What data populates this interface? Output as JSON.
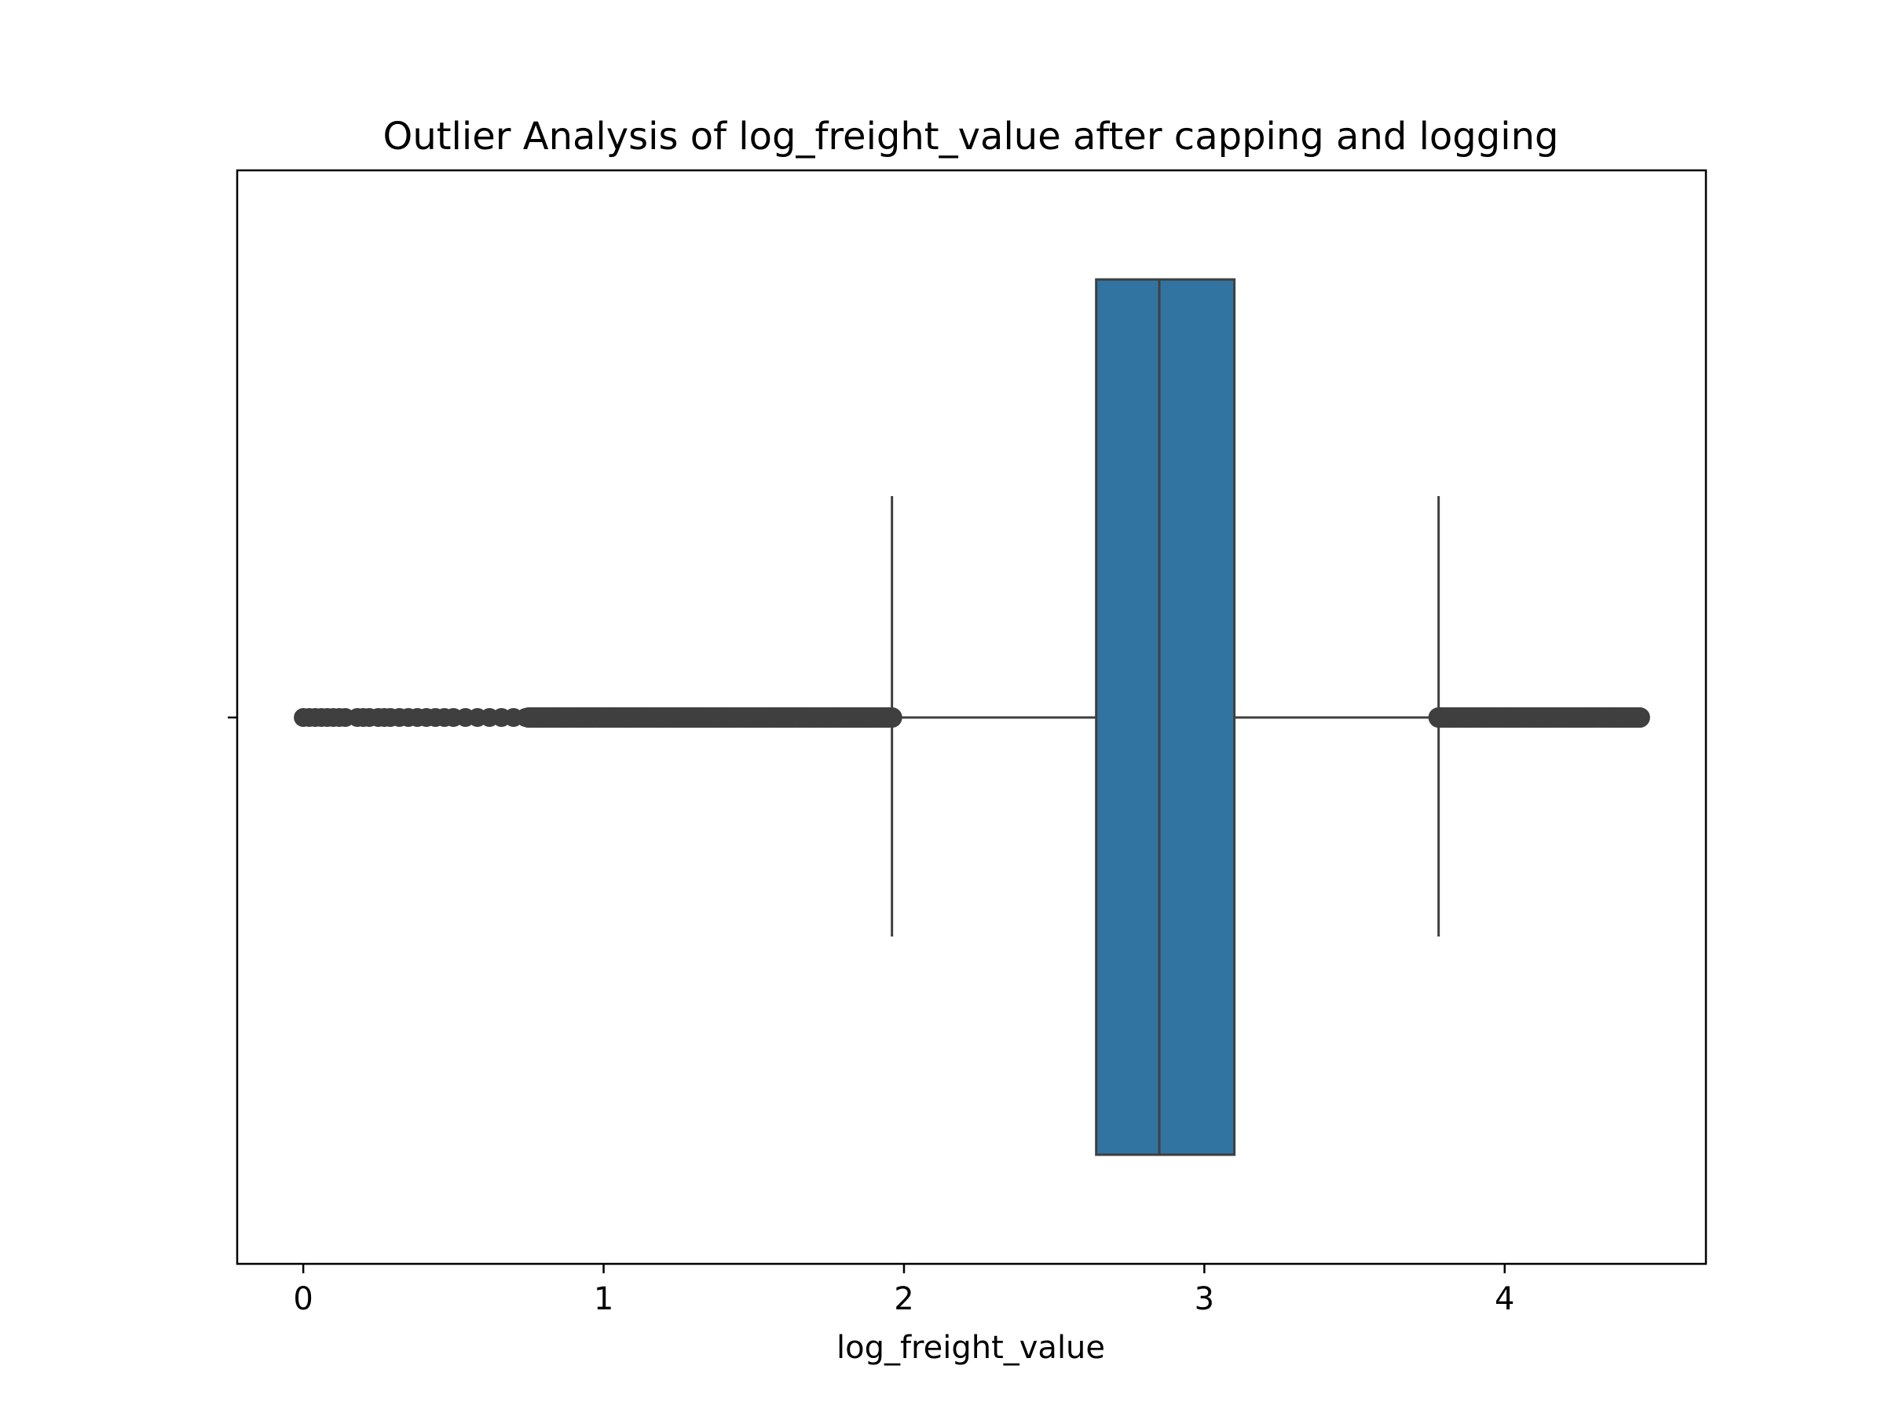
{
  "chart_data": {
    "type": "box",
    "title": "Outlier Analysis of log_freight_value after capping and logging",
    "xlabel": "log_freight_value",
    "ylabel": "",
    "orientation": "horizontal",
    "xlim": [
      -0.22,
      4.67
    ],
    "xticks": [
      "0",
      "1",
      "2",
      "3",
      "4"
    ],
    "xtick_values": [
      0,
      1,
      2,
      3,
      4
    ],
    "grid": false,
    "box": {
      "q1": 2.64,
      "median": 2.85,
      "q3": 3.1,
      "whisker_low": 1.96,
      "whisker_high": 3.78,
      "fill_color": "#3274a1",
      "edge_color": "#3f3f3f"
    },
    "outliers": {
      "low_sparse": [
        0.0,
        0.02,
        0.04,
        0.06,
        0.08,
        0.1,
        0.12,
        0.14,
        0.18,
        0.2,
        0.22,
        0.25,
        0.27,
        0.29,
        0.32,
        0.35,
        0.38,
        0.41,
        0.44,
        0.47,
        0.5,
        0.54,
        0.58,
        0.62,
        0.66,
        0.7,
        0.74
      ],
      "low_dense_range": [
        0.75,
        1.96
      ],
      "high_dense_range": [
        3.78,
        4.45
      ]
    }
  }
}
